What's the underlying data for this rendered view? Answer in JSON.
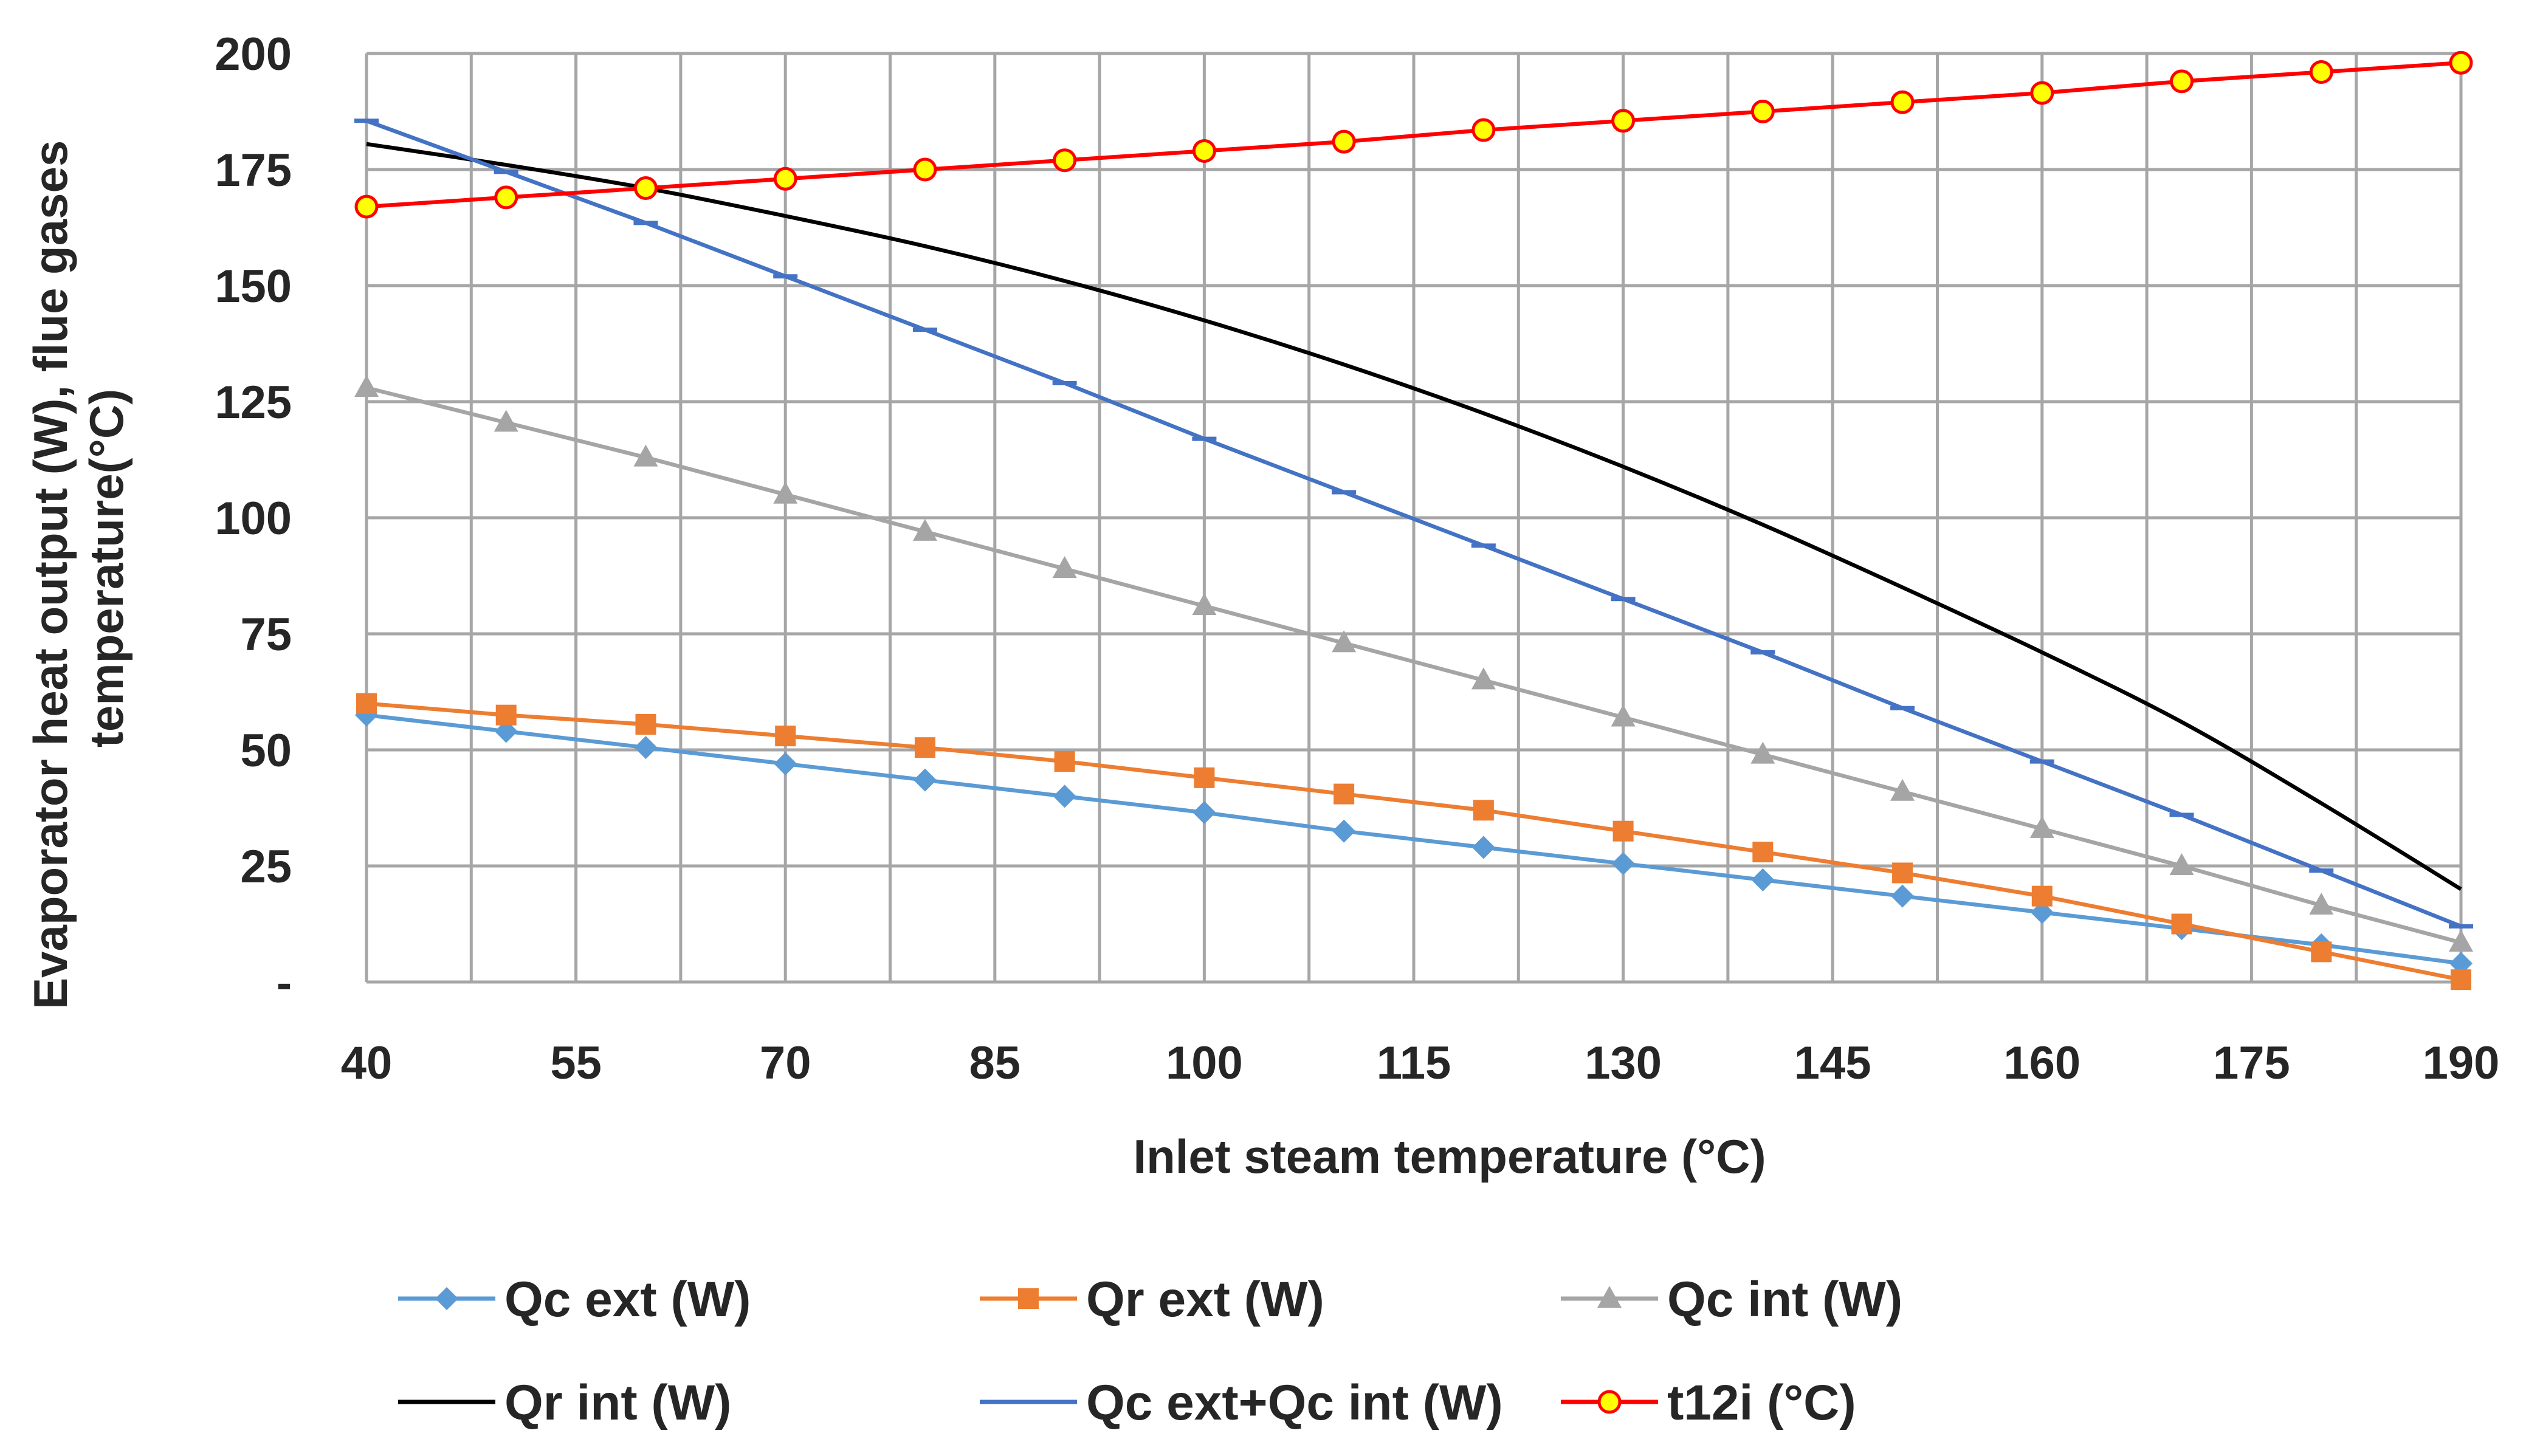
{
  "chart_data": {
    "type": "line",
    "title": "",
    "xlabel": "Inlet steam temperature (°C)",
    "ylabel_lines": [
      "Evaporator heat output (W), flue gases",
      "temperature(°C)"
    ],
    "xlim": [
      40,
      190
    ],
    "ylim": [
      0,
      200
    ],
    "x_ticks": [
      "40",
      "55",
      "70",
      "85",
      "100",
      "115",
      "130",
      "145",
      "160",
      "175",
      "190"
    ],
    "x_tick_values": [
      40,
      55,
      70,
      85,
      100,
      115,
      130,
      145,
      160,
      175,
      190
    ],
    "y_ticks": [
      "-",
      "25",
      "50",
      "75",
      "100",
      "125",
      "150",
      "175",
      "200"
    ],
    "y_tick_values": [
      0,
      25,
      50,
      75,
      100,
      125,
      150,
      175,
      200
    ],
    "x_grid_values": [
      40,
      55,
      70,
      85,
      100,
      115,
      130,
      145,
      160,
      175,
      190
    ],
    "x_minor_grid_values": [
      47.5,
      62.5,
      77.5,
      92.5,
      107.5,
      122.5,
      137.5,
      152.5,
      167.5,
      182.5
    ],
    "grid": true,
    "legend_position": "bottom",
    "x": [
      40,
      50,
      60,
      70,
      80,
      90,
      100,
      110,
      120,
      130,
      140,
      150,
      160,
      170,
      180,
      190
    ],
    "series": [
      {
        "name": "Qc ext (W)",
        "color": "#5B9BD5",
        "marker": "diamond",
        "values": [
          57.5,
          54,
          50.5,
          47,
          43.5,
          40,
          36.5,
          32.5,
          29,
          25.5,
          22,
          18.5,
          15,
          11.5,
          8,
          4
        ]
      },
      {
        "name": "Qr ext (W)",
        "color": "#ED7D31",
        "marker": "square",
        "values": [
          60,
          57.5,
          55.5,
          53,
          50.5,
          47.5,
          44,
          40.5,
          37,
          32.5,
          28,
          23.5,
          18.5,
          12.5,
          6.5,
          0.5
        ]
      },
      {
        "name": "Qc int (W)",
        "color": "#A5A5A5",
        "marker": "triangle",
        "values": [
          128,
          120.5,
          113,
          105,
          97,
          89,
          81,
          73,
          65,
          57,
          49,
          41,
          33,
          25,
          16.5,
          8.5
        ]
      },
      {
        "name": "Qr int (W)",
        "color": "#000000",
        "marker": "none",
        "values": [
          180.5,
          176,
          171,
          165,
          158.5,
          151,
          142.5,
          133,
          122.5,
          111,
          98.5,
          85,
          71,
          56,
          38.5,
          20
        ]
      },
      {
        "name": "Qc ext+Qc int (W)",
        "color": "#4472C4",
        "marker": "dash",
        "values": [
          185.5,
          174.5,
          163.5,
          152,
          140.5,
          129,
          117,
          105.5,
          94,
          82.5,
          71,
          59,
          47.5,
          36,
          24,
          12
        ]
      },
      {
        "name": "t12i (°C)",
        "color": "#FF0000",
        "marker": "circle",
        "marker_fill": "#FFFF00",
        "values": [
          167,
          169,
          171,
          173,
          175,
          177,
          179,
          181,
          183.5,
          185.5,
          187.5,
          189.5,
          191.5,
          194,
          196,
          198
        ]
      }
    ]
  }
}
